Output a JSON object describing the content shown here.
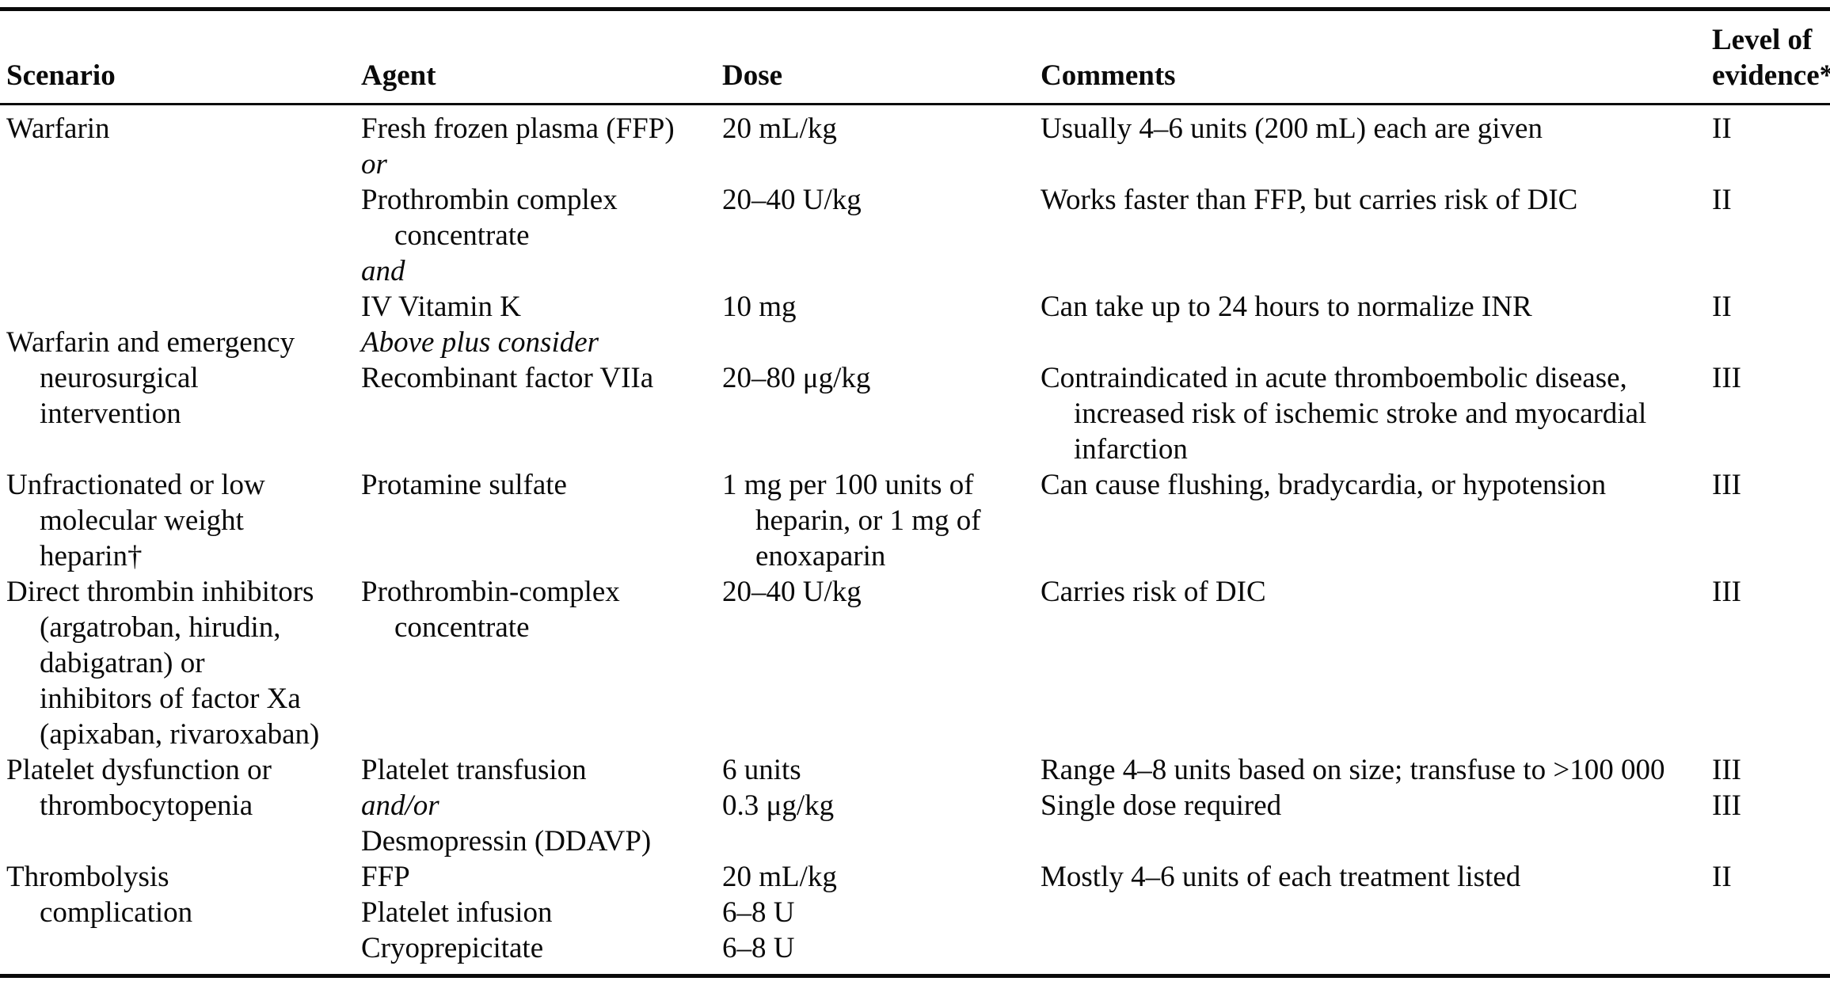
{
  "table": {
    "header": {
      "scenario": "Scenario",
      "agent": "Agent",
      "dose": "Dose",
      "comments": "Comments",
      "evidence_line1": "Level of",
      "evidence_line2": "evidence*"
    },
    "rows": [
      {
        "scenario": [
          {
            "t": "Warfarin"
          }
        ],
        "agent": [
          {
            "t": "Fresh frozen plasma (FFP)"
          },
          {
            "t": "or",
            "i": true
          },
          {
            "t": "Prothrombin complex"
          },
          {
            "t": "concentrate",
            "ind": true
          },
          {
            "t": "and",
            "i": true
          },
          {
            "t": "IV Vitamin K"
          }
        ],
        "dose": [
          {
            "t": "20 mL/kg"
          },
          {
            "t": ""
          },
          {
            "t": "20–40 U/kg"
          },
          {
            "t": ""
          },
          {
            "t": ""
          },
          {
            "t": "10 mg"
          }
        ],
        "comments": [
          {
            "t": "Usually 4–6 units (200 mL) each are given"
          },
          {
            "t": ""
          },
          {
            "t": "Works faster than FFP, but carries risk of DIC"
          },
          {
            "t": ""
          },
          {
            "t": ""
          },
          {
            "t": "Can take up to 24 hours to normalize INR"
          }
        ],
        "evidence": [
          {
            "t": "II"
          },
          {
            "t": ""
          },
          {
            "t": "II"
          },
          {
            "t": ""
          },
          {
            "t": ""
          },
          {
            "t": "II"
          }
        ]
      },
      {
        "scenario": [
          {
            "t": "Warfarin and emergency"
          },
          {
            "t": "neurosurgical",
            "ind": true
          },
          {
            "t": "intervention",
            "ind": true
          }
        ],
        "agent": [
          {
            "t": "Above plus consider",
            "i": true
          },
          {
            "t": "Recombinant factor VIIa"
          }
        ],
        "dose": [
          {
            "t": ""
          },
          {
            "t": "20–80 μg/kg"
          }
        ],
        "comments": [
          {
            "t": ""
          },
          {
            "t": "Contraindicated in acute thromboembolic disease,"
          },
          {
            "t": "increased risk of ischemic stroke and myocardial",
            "ind": true
          },
          {
            "t": "infarction",
            "ind": true
          }
        ],
        "evidence": [
          {
            "t": ""
          },
          {
            "t": "III"
          }
        ]
      },
      {
        "scenario": [
          {
            "t": "Unfractionated or low"
          },
          {
            "t": "molecular weight",
            "ind": true
          },
          {
            "t": "heparin†",
            "ind": true
          }
        ],
        "agent": [
          {
            "t": "Protamine sulfate"
          }
        ],
        "dose": [
          {
            "t": "1 mg per 100 units of"
          },
          {
            "t": "heparin, or 1 mg of",
            "ind": true
          },
          {
            "t": "enoxaparin",
            "ind": true
          }
        ],
        "comments": [
          {
            "t": "Can cause flushing, bradycardia, or hypotension"
          }
        ],
        "evidence": [
          {
            "t": "III"
          }
        ]
      },
      {
        "scenario": [
          {
            "t": "Direct thrombin inhibitors"
          },
          {
            "t": "(argatroban, hirudin,",
            "ind": true
          },
          {
            "t": "dabigatran) or",
            "ind": true
          },
          {
            "t": "inhibitors of factor Xa",
            "ind": true
          },
          {
            "t": "(apixaban, rivaroxaban)",
            "ind": true
          }
        ],
        "agent": [
          {
            "t": "Prothrombin-complex"
          },
          {
            "t": "concentrate",
            "ind": true
          }
        ],
        "dose": [
          {
            "t": "20–40 U/kg"
          }
        ],
        "comments": [
          {
            "t": "Carries risk of DIC"
          }
        ],
        "evidence": [
          {
            "t": "III"
          }
        ]
      },
      {
        "scenario": [
          {
            "t": "Platelet dysfunction or"
          },
          {
            "t": "thrombocytopenia",
            "ind": true
          }
        ],
        "agent": [
          {
            "t": "Platelet transfusion"
          },
          {
            "t": "and/or",
            "i": true
          },
          {
            "t": "Desmopressin (DDAVP)"
          }
        ],
        "dose": [
          {
            "t": "6 units"
          },
          {
            "t": "0.3 μg/kg"
          }
        ],
        "comments": [
          {
            "t": "Range 4–8 units based on size; transfuse to >100 000"
          },
          {
            "t": "Single dose required"
          }
        ],
        "evidence": [
          {
            "t": "III"
          },
          {
            "t": "III"
          }
        ]
      },
      {
        "scenario": [
          {
            "t": "Thrombolysis"
          },
          {
            "t": "complication",
            "ind": true
          }
        ],
        "agent": [
          {
            "t": "FFP"
          },
          {
            "t": "Platelet infusion"
          },
          {
            "t": "Cryoprepicitate"
          }
        ],
        "dose": [
          {
            "t": "20 mL/kg"
          },
          {
            "t": "6–8 U"
          },
          {
            "t": "6–8 U"
          }
        ],
        "comments": [
          {
            "t": "Mostly 4–6 units of each treatment listed"
          }
        ],
        "evidence": [
          {
            "t": "II"
          }
        ]
      }
    ]
  },
  "colors": {
    "text": "#0a0a0a",
    "background": "#ffffff",
    "rule": "#0a0a0a"
  }
}
